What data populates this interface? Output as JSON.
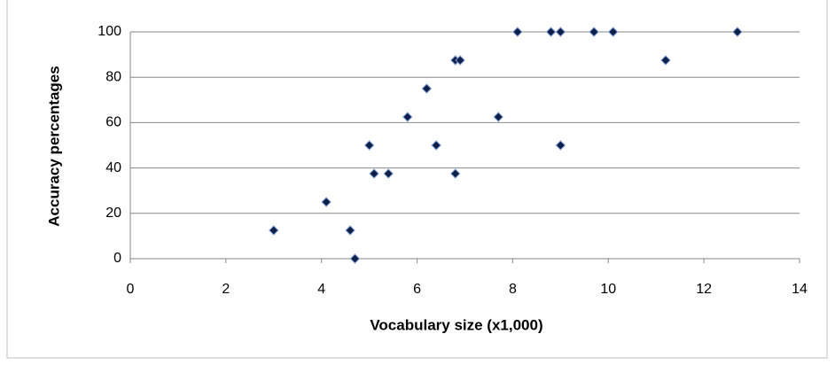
{
  "chart_data": {
    "type": "scatter",
    "x_label": "Vocabulary size (x1,000)",
    "y_label": "Accuracy percentages",
    "series": [
      {
        "color": "#0d1f4a",
        "x": [
          3.0,
          4.1,
          4.6,
          4.7,
          5.0,
          5.1,
          5.4,
          5.8,
          6.2,
          6.4,
          6.8,
          6.8,
          6.9,
          7.7,
          8.1,
          8.8,
          9.0,
          9.0,
          9.7,
          10.1,
          11.2,
          12.7
        ],
        "values": [
          12.5,
          25,
          12.5,
          0,
          50,
          37.5,
          37.5,
          62.5,
          75,
          50,
          37.5,
          87.5,
          87.5,
          62.5,
          100,
          100,
          100,
          50,
          100,
          100,
          87.5,
          100
        ]
      }
    ],
    "xlim": [
      0,
      14
    ],
    "xticks": [
      0,
      2,
      4,
      6,
      8,
      10,
      12,
      14
    ],
    "ylim": [
      0,
      100
    ],
    "yticks": [
      0,
      20,
      40,
      60,
      80,
      100
    ],
    "grid": true
  }
}
